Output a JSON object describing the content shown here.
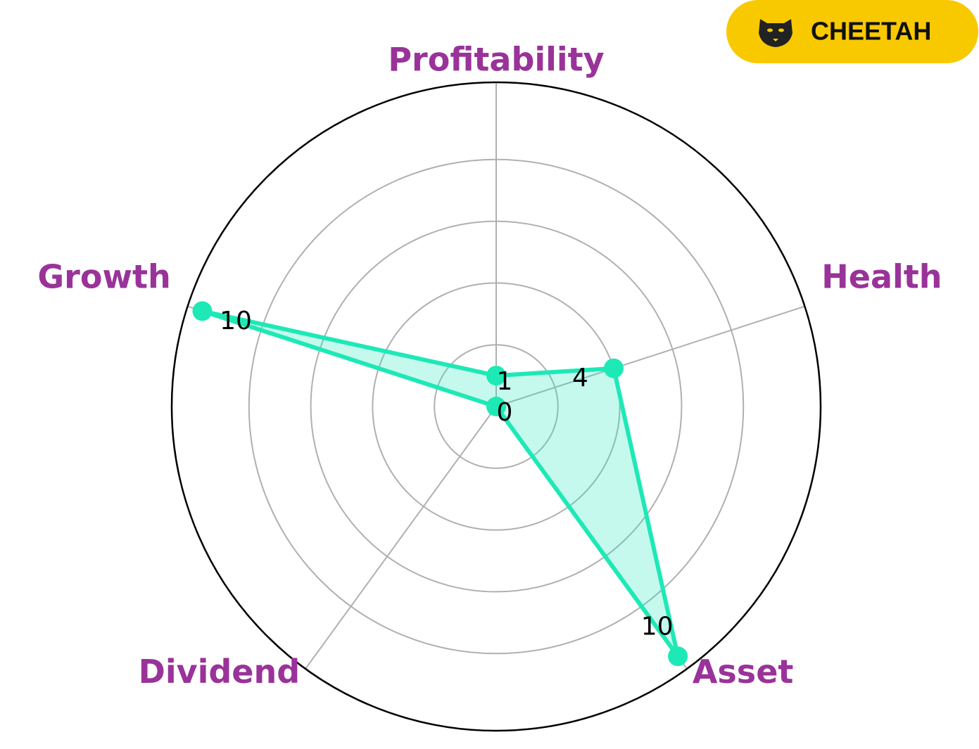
{
  "chart_data": {
    "type": "radar",
    "categories": [
      "Profitability",
      "Health",
      "Asset",
      "Dividend",
      "Growth"
    ],
    "values": [
      1,
      4,
      10,
      0,
      10
    ],
    "color": "#1de9b6",
    "ylim": [
      0,
      10.5
    ],
    "yticks": [
      2,
      4,
      6,
      8
    ],
    "grid": true
  },
  "badge": {
    "text": "CHEETAH"
  }
}
